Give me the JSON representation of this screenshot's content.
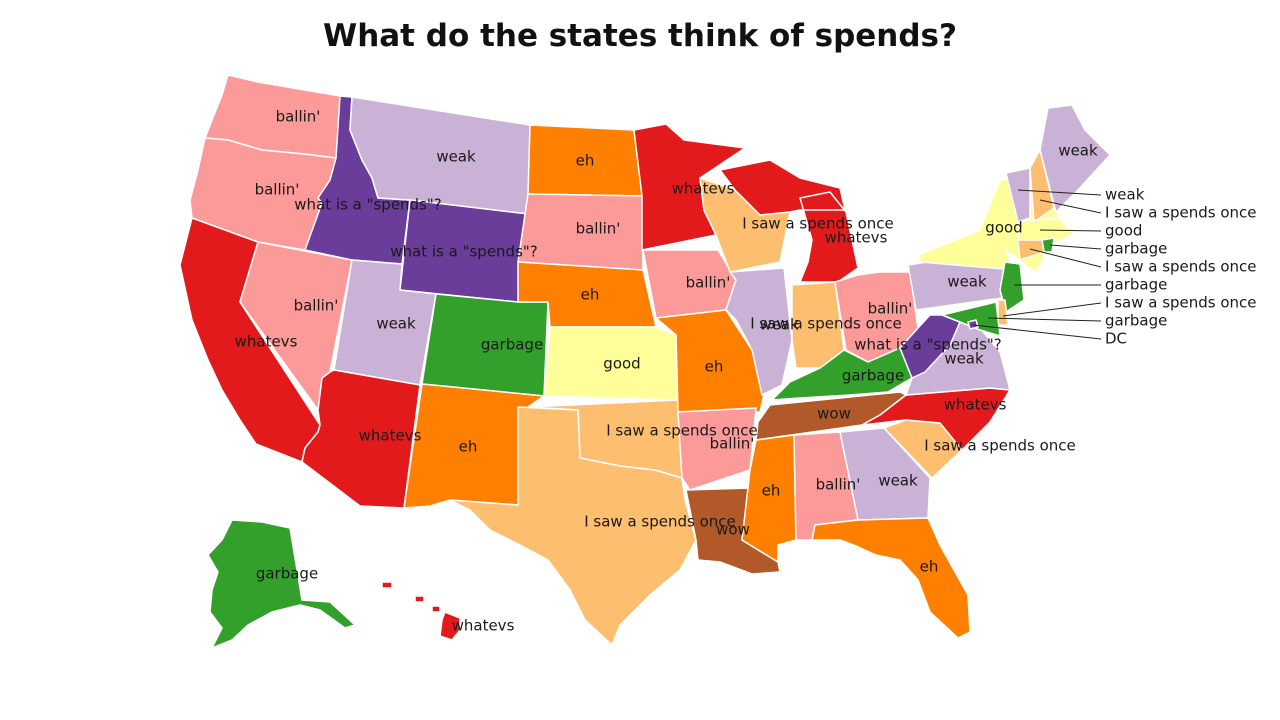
{
  "title": "What do the states think of spends?",
  "colors": {
    "ballin'": "#fb9a99",
    "weak": "#cab2d6",
    "eh": "#ff7f00",
    "whatevs": "#e31a1c",
    "what is a \"spends\"?": "#6a3d9a",
    "I saw a spends once": "#fdbf6f",
    "good": "#ffff99",
    "garbage": "#33a02c",
    "wow": "#b15928"
  },
  "states": [
    {
      "id": "WA",
      "answer": "ballin'"
    },
    {
      "id": "OR",
      "answer": "ballin'"
    },
    {
      "id": "CA",
      "answer": "whatevs"
    },
    {
      "id": "NV",
      "answer": "ballin'"
    },
    {
      "id": "ID",
      "answer": "what is a \"spends\"?"
    },
    {
      "id": "MT",
      "answer": "weak"
    },
    {
      "id": "WY",
      "answer": "what is a \"spends\"?"
    },
    {
      "id": "UT",
      "answer": "weak"
    },
    {
      "id": "AZ",
      "answer": "whatevs"
    },
    {
      "id": "CO",
      "answer": "garbage"
    },
    {
      "id": "NM",
      "answer": "eh"
    },
    {
      "id": "ND",
      "answer": "eh"
    },
    {
      "id": "SD",
      "answer": "ballin'"
    },
    {
      "id": "NE",
      "answer": "eh"
    },
    {
      "id": "KS",
      "answer": "good"
    },
    {
      "id": "OK",
      "answer": "I saw a spends once"
    },
    {
      "id": "TX",
      "answer": "I saw a spends once"
    },
    {
      "id": "MN",
      "answer": "whatevs"
    },
    {
      "id": "IA",
      "answer": "ballin'"
    },
    {
      "id": "MO",
      "answer": "eh"
    },
    {
      "id": "AR",
      "answer": "ballin'"
    },
    {
      "id": "LA",
      "answer": "wow"
    },
    {
      "id": "WI",
      "answer": "I saw a spends once"
    },
    {
      "id": "IL",
      "answer": "weak"
    },
    {
      "id": "MI",
      "answer": "whatevs"
    },
    {
      "id": "IN",
      "answer": "I saw a spends once"
    },
    {
      "id": "OH",
      "answer": "ballin'"
    },
    {
      "id": "KY",
      "answer": "garbage"
    },
    {
      "id": "TN",
      "answer": "wow"
    },
    {
      "id": "MS",
      "answer": "eh"
    },
    {
      "id": "AL",
      "answer": "ballin'"
    },
    {
      "id": "GA",
      "answer": "weak"
    },
    {
      "id": "FL",
      "answer": "eh"
    },
    {
      "id": "SC",
      "answer": "I saw a spends once"
    },
    {
      "id": "NC",
      "answer": "whatevs"
    },
    {
      "id": "VA",
      "answer": "weak"
    },
    {
      "id": "WV",
      "answer": "what is a \"spends\"?"
    },
    {
      "id": "PA",
      "answer": "weak"
    },
    {
      "id": "NY",
      "answer": "good"
    },
    {
      "id": "VT",
      "answer": "weak"
    },
    {
      "id": "NH",
      "answer": "I saw a spends once"
    },
    {
      "id": "ME",
      "answer": "weak"
    },
    {
      "id": "MA",
      "answer": "good"
    },
    {
      "id": "RI",
      "answer": "garbage"
    },
    {
      "id": "CT",
      "answer": "I saw a spends once"
    },
    {
      "id": "NJ",
      "answer": "garbage"
    },
    {
      "id": "DE",
      "answer": "I saw a spends once"
    },
    {
      "id": "MD",
      "answer": "garbage"
    },
    {
      "id": "DC",
      "answer": "what is a \"spends\"?"
    },
    {
      "id": "AK",
      "answer": "garbage"
    },
    {
      "id": "HI",
      "answer": "whatevs"
    }
  ],
  "callouts": [
    {
      "id": "VT",
      "text": "weak"
    },
    {
      "id": "NH",
      "text": "I saw a spends once"
    },
    {
      "id": "MA",
      "text": "good"
    },
    {
      "id": "RI",
      "text": "garbage"
    },
    {
      "id": "CT",
      "text": "I saw a spends once"
    },
    {
      "id": "NJ",
      "text": "garbage"
    },
    {
      "id": "DE",
      "text": "I saw a spends once"
    },
    {
      "id": "MD",
      "text": "garbage"
    },
    {
      "id": "DC",
      "text": "DC"
    }
  ]
}
